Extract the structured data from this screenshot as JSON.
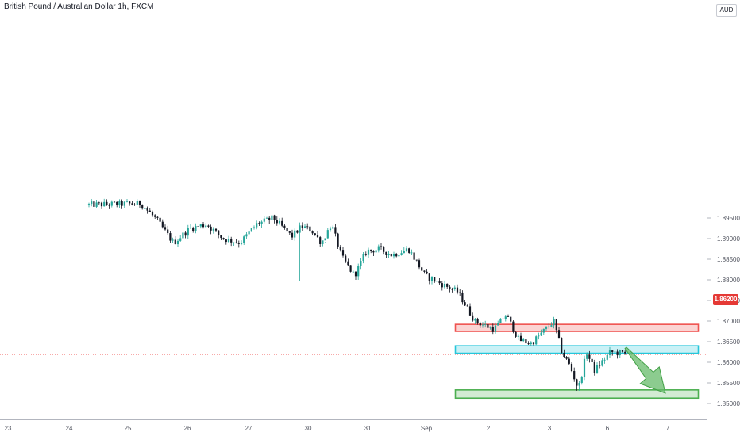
{
  "header": {
    "title": "British Pound / Australian Dollar 1h, FXCM",
    "currency": "AUD"
  },
  "price_scale": {
    "current_price_label": "1.86200",
    "current_price_color": "#e53935"
  },
  "colors": {
    "bull_candle": "#26a69a",
    "bear_candle": "#131722",
    "resistance_zone": "#ef5350",
    "pivot_zone": "#26c6da",
    "target_zone": "#4caf50",
    "arrow": "#66bb6a"
  },
  "chart_data": {
    "type": "candlestick",
    "title": "British Pound / Australian Dollar 1h, FXCM",
    "x_tick_labels": [
      "23",
      "24",
      "25",
      "26",
      "27",
      "30",
      "31",
      "Sep",
      "2",
      "3",
      "6",
      "7"
    ],
    "y_tick_labels": [
      "1.89500",
      "1.89000",
      "1.88500",
      "1.88000",
      "1.87500",
      "1.87000",
      "1.86500",
      "1.86000",
      "1.85500",
      "1.85000"
    ],
    "ylim": [
      1.8485,
      1.8975
    ],
    "current_price": 1.862,
    "price_path": [
      {
        "x": "23 Aug",
        "y": 1.8982
      },
      {
        "x": "24 Aug",
        "y": 1.8985
      },
      {
        "x": "24 Aug",
        "y": 1.8945
      },
      {
        "x": "24 Aug",
        "y": 1.8889
      },
      {
        "x": "25 Aug",
        "y": 1.8925
      },
      {
        "x": "25 Aug",
        "y": 1.8935
      },
      {
        "x": "25 Aug",
        "y": 1.89
      },
      {
        "x": "26 Aug",
        "y": 1.889
      },
      {
        "x": "26 Aug",
        "y": 1.8935
      },
      {
        "x": "26 Aug",
        "y": 1.895
      },
      {
        "x": "27 Aug",
        "y": 1.8905
      },
      {
        "x": "27 Aug",
        "y": 1.893
      },
      {
        "x": "27 Aug",
        "y": 1.892
      },
      {
        "x": "27 Aug",
        "y": 1.889
      },
      {
        "x": "27 Aug",
        "y": 1.8935
      },
      {
        "x": "30 Aug",
        "y": 1.8855
      },
      {
        "x": "30 Aug",
        "y": 1.881
      },
      {
        "x": "30 Aug",
        "y": 1.887
      },
      {
        "x": "30 Aug",
        "y": 1.8875
      },
      {
        "x": "31 Aug",
        "y": 1.886
      },
      {
        "x": "31 Aug",
        "y": 1.8875
      },
      {
        "x": "31 Aug",
        "y": 1.881
      },
      {
        "x": "1 Sep",
        "y": 1.879
      },
      {
        "x": "1 Sep",
        "y": 1.877
      },
      {
        "x": "1 Sep",
        "y": 1.87
      },
      {
        "x": "2 Sep",
        "y": 1.868
      },
      {
        "x": "2 Sep",
        "y": 1.8715
      },
      {
        "x": "2 Sep",
        "y": 1.8655
      },
      {
        "x": "2 Sep",
        "y": 1.8645
      },
      {
        "x": "3 Sep",
        "y": 1.868
      },
      {
        "x": "3 Sep",
        "y": 1.87
      },
      {
        "x": "3 Sep",
        "y": 1.8625
      },
      {
        "x": "3 Sep",
        "y": 1.859
      },
      {
        "x": "3 Sep",
        "y": 1.8535
      },
      {
        "x": "3 Sep",
        "y": 1.8625
      },
      {
        "x": "6 Sep",
        "y": 1.858
      },
      {
        "x": "6 Sep",
        "y": 1.8625
      },
      {
        "x": "6 Sep",
        "y": 1.862
      }
    ],
    "zones": [
      {
        "low": 1.8675,
        "high": 1.8692,
        "color": "#ef5350"
      },
      {
        "low": 1.8622,
        "high": 1.864,
        "color": "#26c6da"
      },
      {
        "low": 1.8513,
        "high": 1.8533,
        "color": "#4caf50"
      }
    ],
    "forecast_arrow": {
      "from": {
        "x": "6 Sep",
        "y": 1.8635
      },
      "to": {
        "x": "7 Sep",
        "y": 1.8525
      }
    }
  }
}
